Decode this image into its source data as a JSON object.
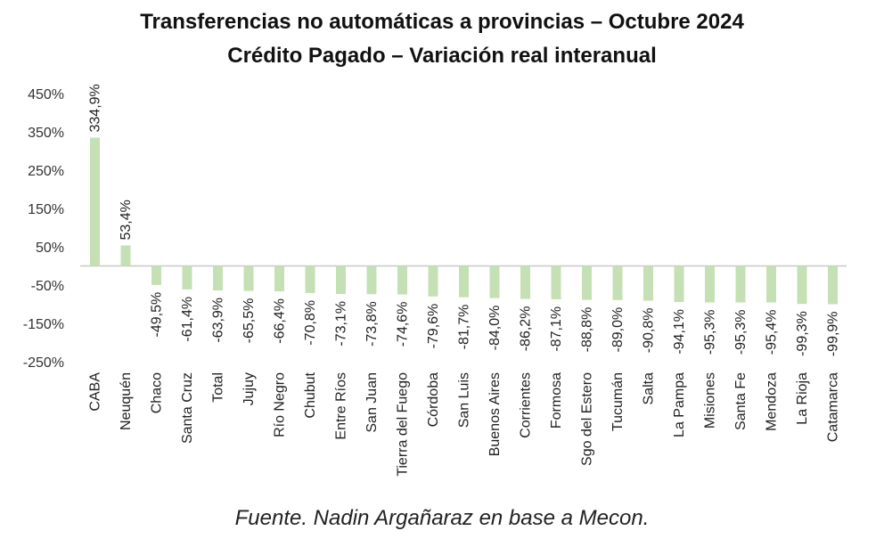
{
  "chart_data": {
    "type": "bar",
    "title": "Transferencias no automáticas a provincias – Octubre 2024",
    "subtitle": "Crédito Pagado – Variación real interanual",
    "source": "Fuente. Nadin Argañaraz en base a Mecon.",
    "ylim": [
      -250,
      450
    ],
    "y_ticks": [
      "450%",
      "350%",
      "250%",
      "150%",
      "50%",
      "-50%",
      "-150%",
      "-250%"
    ],
    "y_tick_values": [
      450,
      350,
      250,
      150,
      50,
      -50,
      -150,
      -250
    ],
    "grid": false,
    "bar_color": "#c5e0b4",
    "categories": [
      "CABA",
      "Neuquén",
      "Chaco",
      "Santa Cruz",
      "Total",
      "Jujuy",
      "Río Negro",
      "Chubut",
      "Entre Ríos",
      "San Juan",
      "Tierra del Fuego",
      "Córdoba",
      "San Luis",
      "Buenos Aires",
      "Corrientes",
      "Formosa",
      "Sgo del Estero",
      "Tucumán",
      "Salta",
      "La Pampa",
      "Misiones",
      "Santa Fe",
      "Mendoza",
      "La Rioja",
      "Catamarca"
    ],
    "values": [
      334.9,
      53.4,
      -49.5,
      -61.4,
      -63.9,
      -65.5,
      -66.4,
      -70.8,
      -73.1,
      -73.8,
      -74.6,
      -79.6,
      -81.7,
      -84.0,
      -86.2,
      -87.1,
      -88.8,
      -89.0,
      -90.8,
      -94.1,
      -95.3,
      -95.3,
      -95.4,
      -99.3,
      -99.9
    ],
    "data_labels": [
      "334,9%",
      "53,4%",
      "-49,5%",
      "-61,4%",
      "-63,9%",
      "-65,5%",
      "-66,4%",
      "-70,8%",
      "-73,1%",
      "-73,8%",
      "-74,6%",
      "-79,6%",
      "-81,7%",
      "-84,0%",
      "-86,2%",
      "-87,1%",
      "-88,8%",
      "-89,0%",
      "-90,8%",
      "-94,1%",
      "-95,3%",
      "-95,3%",
      "-95,4%",
      "-99,3%",
      "-99,9%"
    ]
  }
}
